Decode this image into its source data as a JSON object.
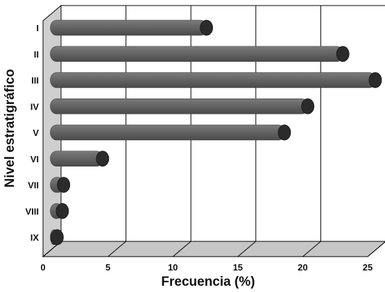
{
  "chart_data": {
    "type": "bar",
    "orientation": "horizontal",
    "style": "3d-cylinder",
    "categories": [
      "I",
      "II",
      "III",
      "IV",
      "V",
      "VI",
      "VII",
      "VIII",
      "IX"
    ],
    "values": [
      12,
      22.5,
      25,
      19.8,
      18,
      4,
      1,
      0.9,
      0.5
    ],
    "xlabel": "Frecuencia (%)",
    "ylabel": "Nivel estratigráfico",
    "xlim": [
      0,
      25
    ],
    "xticks": [
      "0",
      "5",
      "10",
      "15",
      "20",
      "25"
    ],
    "grid": true,
    "colors": {
      "bar": "#5f5f5f",
      "bar_end": "#2b2b2b",
      "wall": "#cfcfcf",
      "floor": "#c6c6c6",
      "grid": "#000000"
    }
  }
}
